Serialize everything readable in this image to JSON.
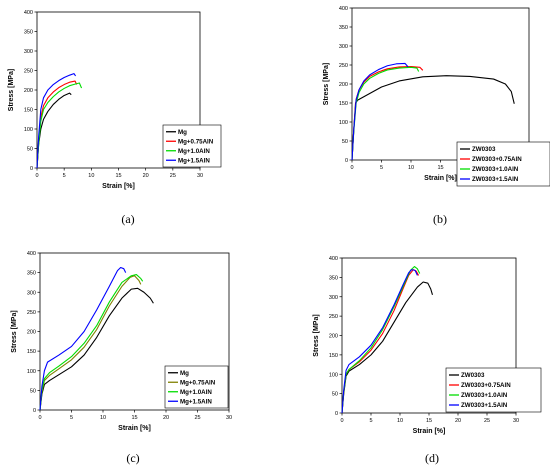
{
  "chart_data": [
    {
      "type": "line",
      "panel_label": "(a)",
      "xlabel": "Strain [%]",
      "ylabel": "Stress [MPa]",
      "xlim": [
        0,
        30
      ],
      "ylim": [
        0,
        400
      ],
      "xticks": [
        0,
        5,
        10,
        15,
        20,
        25,
        30
      ],
      "yticks": [
        0,
        50,
        100,
        150,
        200,
        250,
        300,
        350,
        400
      ],
      "legend_position": "bottom-right",
      "series": [
        {
          "name": "Mg",
          "color": "#000000",
          "points": [
            [
              0,
              0
            ],
            [
              0.3,
              60
            ],
            [
              0.7,
              100
            ],
            [
              1.2,
              125
            ],
            [
              2,
              145
            ],
            [
              3,
              163
            ],
            [
              4,
              176
            ],
            [
              5,
              186
            ],
            [
              6,
              192
            ],
            [
              6.3,
              188
            ]
          ]
        },
        {
          "name": "Mg+0.75AlN",
          "color": "#ff0000",
          "points": [
            [
              0,
              0
            ],
            [
              0.3,
              70
            ],
            [
              0.7,
              130
            ],
            [
              1.2,
              160
            ],
            [
              2,
              180
            ],
            [
              3,
              195
            ],
            [
              4,
              206
            ],
            [
              5,
              214
            ],
            [
              6,
              220
            ],
            [
              7,
              223
            ],
            [
              7.3,
              214
            ]
          ]
        },
        {
          "name": "Mg+1.0AlN",
          "color": "#00dd00",
          "points": [
            [
              0,
              0
            ],
            [
              0.3,
              60
            ],
            [
              0.7,
              120
            ],
            [
              1.2,
              150
            ],
            [
              2,
              168
            ],
            [
              3,
              183
            ],
            [
              4,
              195
            ],
            [
              5,
              204
            ],
            [
              6,
              211
            ],
            [
              7,
              215
            ],
            [
              7.8,
              218
            ],
            [
              8.2,
              205
            ]
          ]
        },
        {
          "name": "Mg+1.5AlN",
          "color": "#0000ff",
          "points": [
            [
              0,
              0
            ],
            [
              0.3,
              80
            ],
            [
              0.7,
              150
            ],
            [
              1.2,
              180
            ],
            [
              2,
              200
            ],
            [
              3,
              214
            ],
            [
              4,
              224
            ],
            [
              5,
              232
            ],
            [
              6,
              238
            ],
            [
              6.8,
              242
            ],
            [
              7.1,
              236
            ]
          ]
        }
      ]
    },
    {
      "type": "line",
      "panel_label": "(b)",
      "xlabel": "Strain [%]",
      "ylabel": "Stress [MPa]",
      "xlim": [
        0,
        30
      ],
      "ylim": [
        0,
        400
      ],
      "xticks": [
        0,
        5,
        10,
        15,
        20,
        25,
        30
      ],
      "yticks": [
        0,
        50,
        100,
        150,
        200,
        250,
        300,
        350,
        400
      ],
      "legend_position": "bottom-right",
      "series": [
        {
          "name": "ZW0303",
          "color": "#000000",
          "points": [
            [
              0,
              0
            ],
            [
              0.3,
              80
            ],
            [
              0.6,
              150
            ],
            [
              1,
              158
            ],
            [
              3,
              175
            ],
            [
              5,
              192
            ],
            [
              8,
              208
            ],
            [
              12,
              219
            ],
            [
              16,
              222
            ],
            [
              20,
              220
            ],
            [
              24,
              213
            ],
            [
              26,
              200
            ],
            [
              27,
              180
            ],
            [
              27.5,
              148
            ]
          ]
        },
        {
          "name": "ZW0303+0.75AlN",
          "color": "#ff0000",
          "points": [
            [
              0,
              0
            ],
            [
              0.3,
              80
            ],
            [
              0.7,
              160
            ],
            [
              1.2,
              185
            ],
            [
              2,
              205
            ],
            [
              3,
              220
            ],
            [
              4.5,
              232
            ],
            [
              6,
              240
            ],
            [
              8,
              245
            ],
            [
              10,
              246
            ],
            [
              11.5,
              244
            ],
            [
              12,
              236
            ]
          ]
        },
        {
          "name": "ZW0303+1.0AlN",
          "color": "#00dd00",
          "points": [
            [
              0,
              0
            ],
            [
              0.3,
              75
            ],
            [
              0.7,
              150
            ],
            [
              1.2,
              178
            ],
            [
              2,
              200
            ],
            [
              3,
              215
            ],
            [
              4.5,
              228
            ],
            [
              6,
              237
            ],
            [
              8,
              242
            ],
            [
              10,
              244
            ],
            [
              11,
              242
            ],
            [
              11.3,
              233
            ]
          ]
        },
        {
          "name": "ZW0303+1.5AlN",
          "color": "#0000ff",
          "points": [
            [
              0,
              0
            ],
            [
              0.3,
              80
            ],
            [
              0.7,
              158
            ],
            [
              1.2,
              185
            ],
            [
              2,
              208
            ],
            [
              3,
              224
            ],
            [
              4.5,
              238
            ],
            [
              6,
              248
            ],
            [
              7.5,
              253
            ],
            [
              9,
              254
            ],
            [
              9.5,
              245
            ]
          ]
        }
      ]
    },
    {
      "type": "line",
      "panel_label": "(c)",
      "xlabel": "Strain [%]",
      "ylabel": "Stress [MPa]",
      "xlim": [
        0,
        30
      ],
      "ylim": [
        0,
        400
      ],
      "xticks": [
        0,
        5,
        10,
        15,
        20,
        25,
        30
      ],
      "yticks": [
        0,
        50,
        100,
        150,
        200,
        250,
        300,
        350,
        400
      ],
      "legend_position": "bottom-right",
      "series": [
        {
          "name": "Mg",
          "color": "#000000",
          "points": [
            [
              0,
              0
            ],
            [
              0.3,
              40
            ],
            [
              0.7,
              65
            ],
            [
              1.5,
              75
            ],
            [
              3,
              90
            ],
            [
              5,
              110
            ],
            [
              7,
              140
            ],
            [
              9,
              185
            ],
            [
              11,
              240
            ],
            [
              13,
              285
            ],
            [
              14.5,
              308
            ],
            [
              15.5,
              310
            ],
            [
              16.5,
              300
            ],
            [
              17.5,
              285
            ],
            [
              18,
              272
            ]
          ]
        },
        {
          "name": "Mg+0.75AlN",
          "color": "#808000",
          "points": [
            [
              0,
              0
            ],
            [
              0.3,
              45
            ],
            [
              0.7,
              75
            ],
            [
              1.5,
              88
            ],
            [
              3,
              105
            ],
            [
              5,
              128
            ],
            [
              7,
              160
            ],
            [
              9,
              205
            ],
            [
              11,
              265
            ],
            [
              13,
              315
            ],
            [
              14.3,
              338
            ],
            [
              15,
              342
            ],
            [
              15.7,
              330
            ],
            [
              16,
              320
            ]
          ]
        },
        {
          "name": "Mg+1.0AlN",
          "color": "#00dd00",
          "points": [
            [
              0,
              0
            ],
            [
              0.3,
              50
            ],
            [
              0.7,
              80
            ],
            [
              1.5,
              95
            ],
            [
              3,
              112
            ],
            [
              5,
              136
            ],
            [
              7,
              170
            ],
            [
              9,
              215
            ],
            [
              11,
              275
            ],
            [
              13,
              325
            ],
            [
              14.5,
              342
            ],
            [
              15.3,
              345
            ],
            [
              16,
              335
            ],
            [
              16.3,
              328
            ]
          ]
        },
        {
          "name": "Mg+1.5AlN",
          "color": "#0000ff",
          "points": [
            [
              0,
              0
            ],
            [
              0.3,
              60
            ],
            [
              0.7,
              100
            ],
            [
              1.2,
              122
            ],
            [
              3,
              140
            ],
            [
              5,
              162
            ],
            [
              7,
              200
            ],
            [
              9,
              255
            ],
            [
              11,
              315
            ],
            [
              12.3,
              355
            ],
            [
              12.8,
              363
            ],
            [
              13.3,
              360
            ],
            [
              13.6,
              350
            ]
          ]
        }
      ]
    },
    {
      "type": "line",
      "panel_label": "(d)",
      "xlabel": "Strain [%]",
      "ylabel": "Stress [MPa]",
      "xlim": [
        0,
        30
      ],
      "ylim": [
        0,
        400
      ],
      "xticks": [
        0,
        5,
        10,
        15,
        20,
        25,
        30
      ],
      "yticks": [
        0,
        50,
        100,
        150,
        200,
        250,
        300,
        350,
        400
      ],
      "legend_position": "bottom-right",
      "series": [
        {
          "name": "ZW0303",
          "color": "#000000",
          "points": [
            [
              0,
              0
            ],
            [
              0.3,
              50
            ],
            [
              0.7,
              95
            ],
            [
              1.2,
              108
            ],
            [
              3,
              125
            ],
            [
              5,
              150
            ],
            [
              7,
              185
            ],
            [
              9,
              235
            ],
            [
              11,
              285
            ],
            [
              13,
              325
            ],
            [
              14,
              338
            ],
            [
              14.8,
              335
            ],
            [
              15.3,
              320
            ],
            [
              15.6,
              305
            ]
          ]
        },
        {
          "name": "ZW0303+0.75AlN",
          "color": "#ff0000",
          "points": [
            [
              0,
              0
            ],
            [
              0.3,
              55
            ],
            [
              0.7,
              100
            ],
            [
              1.2,
              112
            ],
            [
              3,
              132
            ],
            [
              5,
              162
            ],
            [
              7,
              205
            ],
            [
              9,
              265
            ],
            [
              10.5,
              320
            ],
            [
              11.5,
              355
            ],
            [
              12.3,
              370
            ],
            [
              12.8,
              366
            ],
            [
              13.2,
              355
            ]
          ]
        },
        {
          "name": "ZW0303+1.0AlN",
          "color": "#00dd00",
          "points": [
            [
              0,
              0
            ],
            [
              0.3,
              55
            ],
            [
              0.7,
              100
            ],
            [
              1.2,
              112
            ],
            [
              3,
              135
            ],
            [
              5,
              168
            ],
            [
              7,
              215
            ],
            [
              9,
              275
            ],
            [
              10.8,
              335
            ],
            [
              11.8,
              368
            ],
            [
              12.5,
              378
            ],
            [
              13,
              372
            ],
            [
              13.4,
              360
            ]
          ]
        },
        {
          "name": "ZW0303+1.5AlN",
          "color": "#0000ff",
          "points": [
            [
              0,
              0
            ],
            [
              0.3,
              60
            ],
            [
              0.7,
              110
            ],
            [
              1.2,
              125
            ],
            [
              3,
              145
            ],
            [
              5,
              175
            ],
            [
              7,
              220
            ],
            [
              9,
              280
            ],
            [
              10.5,
              330
            ],
            [
              11.5,
              362
            ],
            [
              12,
              370
            ],
            [
              12.6,
              368
            ],
            [
              13,
              355
            ]
          ]
        }
      ]
    }
  ]
}
